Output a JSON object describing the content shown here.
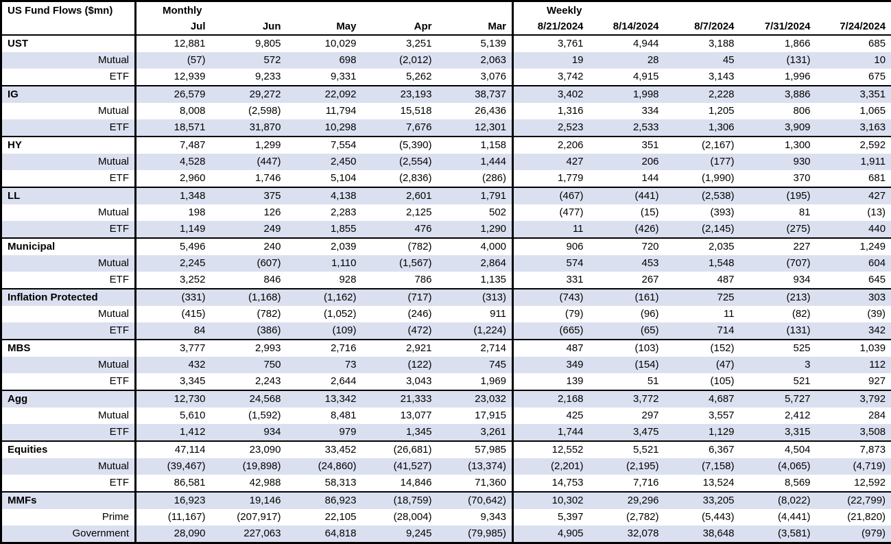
{
  "title": "US Fund Flows ($mn)",
  "colors": {
    "row_stripe": "#dbe0f0",
    "border": "#000000",
    "background": "#ffffff",
    "text": "#000000"
  },
  "chart_data": {
    "type": "table",
    "title": "US Fund Flows ($mn)",
    "units": "$mn, negatives shown in parentheses",
    "column_groups": [
      {
        "label": "Monthly",
        "columns": [
          "Jul",
          "Jun",
          "May",
          "Apr",
          "Mar"
        ]
      },
      {
        "label": "Weekly",
        "columns": [
          "8/21/2024",
          "8/14/2024",
          "8/7/2024",
          "7/31/2024",
          "7/24/2024"
        ]
      }
    ],
    "groups": [
      {
        "rows": [
          {
            "label": "UST",
            "values": [
              "12,881",
              "9,805",
              "10,029",
              "3,251",
              "5,139",
              "3,761",
              "4,944",
              "3,188",
              "1,866",
              "685"
            ]
          },
          {
            "label": "Mutual",
            "values": [
              "(57)",
              "572",
              "698",
              "(2,012)",
              "2,063",
              "19",
              "28",
              "45",
              "(131)",
              "10"
            ]
          },
          {
            "label": "ETF",
            "values": [
              "12,939",
              "9,233",
              "9,331",
              "5,262",
              "3,076",
              "3,742",
              "4,915",
              "3,143",
              "1,996",
              "675"
            ]
          }
        ]
      },
      {
        "rows": [
          {
            "label": "IG",
            "values": [
              "26,579",
              "29,272",
              "22,092",
              "23,193",
              "38,737",
              "3,402",
              "1,998",
              "2,228",
              "3,886",
              "3,351"
            ]
          },
          {
            "label": "Mutual",
            "values": [
              "8,008",
              "(2,598)",
              "11,794",
              "15,518",
              "26,436",
              "1,316",
              "334",
              "1,205",
              "806",
              "1,065"
            ]
          },
          {
            "label": "ETF",
            "values": [
              "18,571",
              "31,870",
              "10,298",
              "7,676",
              "12,301",
              "2,523",
              "2,533",
              "1,306",
              "3,909",
              "3,163"
            ]
          }
        ]
      },
      {
        "rows": [
          {
            "label": "HY",
            "values": [
              "7,487",
              "1,299",
              "7,554",
              "(5,390)",
              "1,158",
              "2,206",
              "351",
              "(2,167)",
              "1,300",
              "2,592"
            ]
          },
          {
            "label": "Mutual",
            "values": [
              "4,528",
              "(447)",
              "2,450",
              "(2,554)",
              "1,444",
              "427",
              "206",
              "(177)",
              "930",
              "1,911"
            ]
          },
          {
            "label": "ETF",
            "values": [
              "2,960",
              "1,746",
              "5,104",
              "(2,836)",
              "(286)",
              "1,779",
              "144",
              "(1,990)",
              "370",
              "681"
            ]
          }
        ]
      },
      {
        "rows": [
          {
            "label": "LL",
            "values": [
              "1,348",
              "375",
              "4,138",
              "2,601",
              "1,791",
              "(467)",
              "(441)",
              "(2,538)",
              "(195)",
              "427"
            ]
          },
          {
            "label": "Mutual",
            "values": [
              "198",
              "126",
              "2,283",
              "2,125",
              "502",
              "(477)",
              "(15)",
              "(393)",
              "81",
              "(13)"
            ]
          },
          {
            "label": "ETF",
            "values": [
              "1,149",
              "249",
              "1,855",
              "476",
              "1,290",
              "11",
              "(426)",
              "(2,145)",
              "(275)",
              "440"
            ]
          }
        ]
      },
      {
        "rows": [
          {
            "label": "Municipal",
            "values": [
              "5,496",
              "240",
              "2,039",
              "(782)",
              "4,000",
              "906",
              "720",
              "2,035",
              "227",
              "1,249"
            ]
          },
          {
            "label": "Mutual",
            "values": [
              "2,245",
              "(607)",
              "1,110",
              "(1,567)",
              "2,864",
              "574",
              "453",
              "1,548",
              "(707)",
              "604"
            ]
          },
          {
            "label": "ETF",
            "values": [
              "3,252",
              "846",
              "928",
              "786",
              "1,135",
              "331",
              "267",
              "487",
              "934",
              "645"
            ]
          }
        ]
      },
      {
        "rows": [
          {
            "label": "Inflation Protected",
            "values": [
              "(331)",
              "(1,168)",
              "(1,162)",
              "(717)",
              "(313)",
              "(743)",
              "(161)",
              "725",
              "(213)",
              "303"
            ]
          },
          {
            "label": "Mutual",
            "values": [
              "(415)",
              "(782)",
              "(1,052)",
              "(246)",
              "911",
              "(79)",
              "(96)",
              "11",
              "(82)",
              "(39)"
            ]
          },
          {
            "label": "ETF",
            "values": [
              "84",
              "(386)",
              "(109)",
              "(472)",
              "(1,224)",
              "(665)",
              "(65)",
              "714",
              "(131)",
              "342"
            ]
          }
        ]
      },
      {
        "rows": [
          {
            "label": "MBS",
            "values": [
              "3,777",
              "2,993",
              "2,716",
              "2,921",
              "2,714",
              "487",
              "(103)",
              "(152)",
              "525",
              "1,039"
            ]
          },
          {
            "label": "Mutual",
            "values": [
              "432",
              "750",
              "73",
              "(122)",
              "745",
              "349",
              "(154)",
              "(47)",
              "3",
              "112"
            ]
          },
          {
            "label": "ETF",
            "values": [
              "3,345",
              "2,243",
              "2,644",
              "3,043",
              "1,969",
              "139",
              "51",
              "(105)",
              "521",
              "927"
            ]
          }
        ]
      },
      {
        "rows": [
          {
            "label": "Agg",
            "values": [
              "12,730",
              "24,568",
              "13,342",
              "21,333",
              "23,032",
              "2,168",
              "3,772",
              "4,687",
              "5,727",
              "3,792"
            ]
          },
          {
            "label": "Mutual",
            "values": [
              "5,610",
              "(1,592)",
              "8,481",
              "13,077",
              "17,915",
              "425",
              "297",
              "3,557",
              "2,412",
              "284"
            ]
          },
          {
            "label": "ETF",
            "values": [
              "1,412",
              "934",
              "979",
              "1,345",
              "3,261",
              "1,744",
              "3,475",
              "1,129",
              "3,315",
              "3,508"
            ]
          }
        ]
      },
      {
        "rows": [
          {
            "label": "Equities",
            "values": [
              "47,114",
              "23,090",
              "33,452",
              "(26,681)",
              "57,985",
              "12,552",
              "5,521",
              "6,367",
              "4,504",
              "7,873"
            ]
          },
          {
            "label": "Mutual",
            "values": [
              "(39,467)",
              "(19,898)",
              "(24,860)",
              "(41,527)",
              "(13,374)",
              "(2,201)",
              "(2,195)",
              "(7,158)",
              "(4,065)",
              "(4,719)"
            ]
          },
          {
            "label": "ETF",
            "values": [
              "86,581",
              "42,988",
              "58,313",
              "14,846",
              "71,360",
              "14,753",
              "7,716",
              "13,524",
              "8,569",
              "12,592"
            ]
          }
        ]
      },
      {
        "rows": [
          {
            "label": "MMFs",
            "values": [
              "16,923",
              "19,146",
              "86,923",
              "(18,759)",
              "(70,642)",
              "10,302",
              "29,296",
              "33,205",
              "(8,022)",
              "(22,799)"
            ]
          },
          {
            "label": "Prime",
            "values": [
              "(11,167)",
              "(207,917)",
              "22,105",
              "(28,004)",
              "9,343",
              "5,397",
              "(2,782)",
              "(5,443)",
              "(4,441)",
              "(21,820)"
            ]
          },
          {
            "label": "Government",
            "values": [
              "28,090",
              "227,063",
              "64,818",
              "9,245",
              "(79,985)",
              "4,905",
              "32,078",
              "38,648",
              "(3,581)",
              "(979)"
            ]
          }
        ]
      }
    ]
  }
}
